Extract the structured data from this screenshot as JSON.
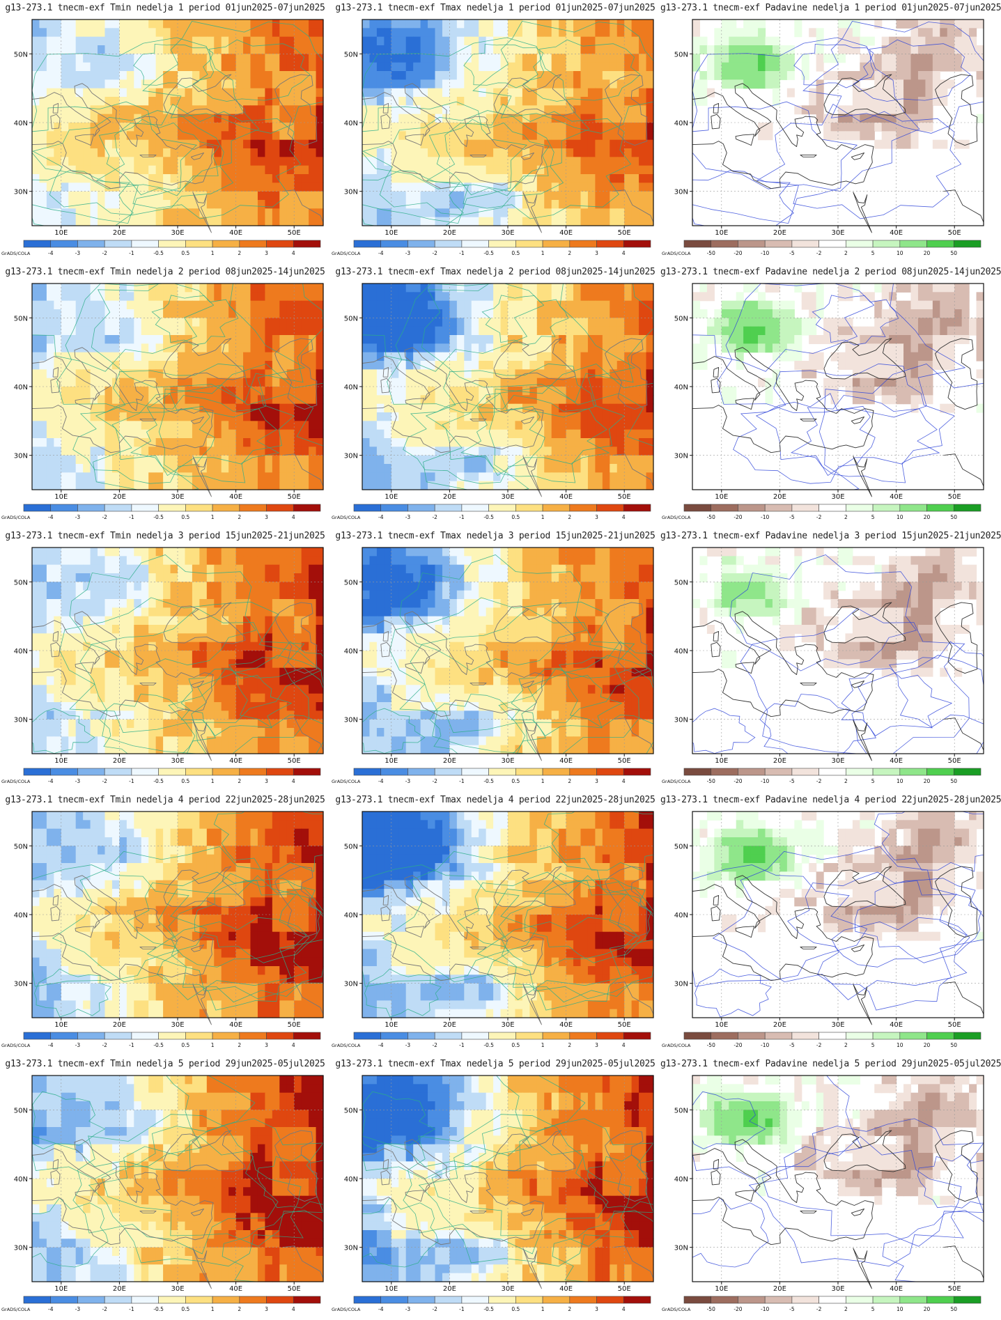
{
  "figure": {
    "colorbar_tag": "GrADS/COLA",
    "lat_labels": [
      "50N",
      "40N",
      "30N"
    ],
    "lon_labels": [
      "10E",
      "20E",
      "30E",
      "40E",
      "50E"
    ],
    "legends": {
      "temp": {
        "colors": [
          "#2a6fd6",
          "#4a8de3",
          "#7fb2ec",
          "#bfdcf6",
          "#eef8ff",
          "#fdf5b8",
          "#fde081",
          "#f6b045",
          "#ee7a1e",
          "#df4710",
          "#a30f0a"
        ],
        "labels": [
          "-4",
          "-3",
          "-2",
          "-1",
          "-0.5",
          "0.5",
          "1",
          "2",
          "3",
          "4"
        ]
      },
      "precip": {
        "colors": [
          "#7a4b3f",
          "#9d6d5f",
          "#bc968a",
          "#d8bcb2",
          "#f2e3dc",
          "#ffffff",
          "#eaffe6",
          "#c6f5bf",
          "#8fe68a",
          "#4fcf4f",
          "#1a9e24"
        ],
        "labels": [
          "-50",
          "-20",
          "-10",
          "-5",
          "-2",
          "2",
          "5",
          "10",
          "20",
          "50"
        ]
      }
    }
  },
  "panels": [
    {
      "title": "g13-273.1 tnecm-exf Tmin nedelja 1 period 01jun2025-07jun2025",
      "variable": "Tmin",
      "week": 1
    },
    {
      "title": "g13-273.1 tnecm-exf Tmax nedelja 1 period 01jun2025-07jun2025",
      "variable": "Tmax",
      "week": 1
    },
    {
      "title": "g13-273.1 tnecm-exf Padavine nedelja 1 period 01jun2025-07jun2025",
      "variable": "Padavine",
      "week": 1
    },
    {
      "title": "g13-273.1 tnecm-exf Tmin nedelja 2 period 08jun2025-14jun2025",
      "variable": "Tmin",
      "week": 2
    },
    {
      "title": "g13-273.1 tnecm-exf Tmax nedelja 2 period 08jun2025-14jun2025",
      "variable": "Tmax",
      "week": 2
    },
    {
      "title": "g13-273.1 tnecm-exf Padavine nedelja 2 period 08jun2025-14jun2025",
      "variable": "Padavine",
      "week": 2
    },
    {
      "title": "g13-273.1 tnecm-exf Tmin nedelja 3 period 15jun2025-21jun2025",
      "variable": "Tmin",
      "week": 3
    },
    {
      "title": "g13-273.1 tnecm-exf Tmax nedelja 3 period 15jun2025-21jun2025",
      "variable": "Tmax",
      "week": 3
    },
    {
      "title": "g13-273.1 tnecm-exf Padavine nedelja 3 period 15jun2025-21jun2025",
      "variable": "Padavine",
      "week": 3
    },
    {
      "title": "g13-273.1 tnecm-exf Tmin nedelja 4 period 22jun2025-28jun2025",
      "variable": "Tmin",
      "week": 4
    },
    {
      "title": "g13-273.1 tnecm-exf Tmax nedelja 4 period 22jun2025-28jun2025",
      "variable": "Tmax",
      "week": 4
    },
    {
      "title": "g13-273.1 tnecm-exf Padavine nedelja 4 period 22jun2025-28jun2025",
      "variable": "Padavine",
      "week": 4
    },
    {
      "title": "g13-273.1 tnecm-exf Tmin nedelja 5 period 29jun2025-05jul2025",
      "variable": "Tmin",
      "week": 5
    },
    {
      "title": "g13-273.1 tnecm-exf Tmax nedelja 5 period 29jun2025-05jul2025",
      "variable": "Tmax",
      "week": 5
    },
    {
      "title": "g13-273.1 tnecm-exf Padavine nedelja 5 period 29jun2025-05jul2025",
      "variable": "Padavine",
      "week": 5
    }
  ]
}
